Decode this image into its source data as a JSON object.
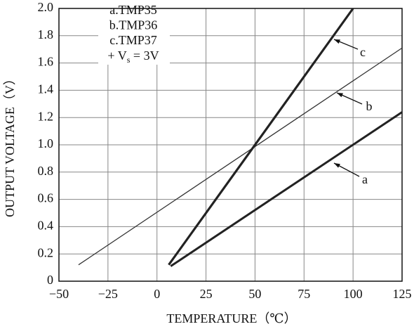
{
  "chart_data": {
    "type": "line",
    "xlabel": "TEMPERATURE（℃）",
    "ylabel": "OUTPUT  VOLTAGE（V）",
    "legend": [
      "a.TMP35",
      "b.TMP36",
      "c.TMP37"
    ],
    "supply_label": {
      "text": "+ V",
      "sub": "s",
      "rest": " = 3V"
    },
    "series": [
      {
        "name": "a",
        "color": "#222",
        "width": 3,
        "x": [
          7,
          125
        ],
        "values": [
          0.11,
          1.24
        ]
      },
      {
        "name": "b",
        "color": "#333",
        "width": 1.3,
        "x": [
          -40,
          125
        ],
        "values": [
          0.12,
          1.71
        ]
      },
      {
        "name": "c",
        "color": "#222",
        "width": 3.2,
        "x": [
          6,
          100
        ],
        "values": [
          0.12,
          2.0
        ]
      }
    ],
    "xlim": [
      -50,
      125
    ],
    "xticks": [
      {
        "value": -50,
        "label": "−50"
      },
      {
        "value": -25,
        "label": "−25"
      },
      0,
      25,
      50,
      75,
      100,
      125
    ],
    "ylim": [
      0,
      2.0
    ],
    "yticks": [
      0,
      0.2,
      0.4,
      0.6,
      0.8,
      {
        "value": 1.0,
        "label": "1.0"
      },
      1.2,
      1.4,
      1.6,
      1.8,
      {
        "value": 2.0,
        "label": "2.0"
      }
    ],
    "grid": true
  }
}
